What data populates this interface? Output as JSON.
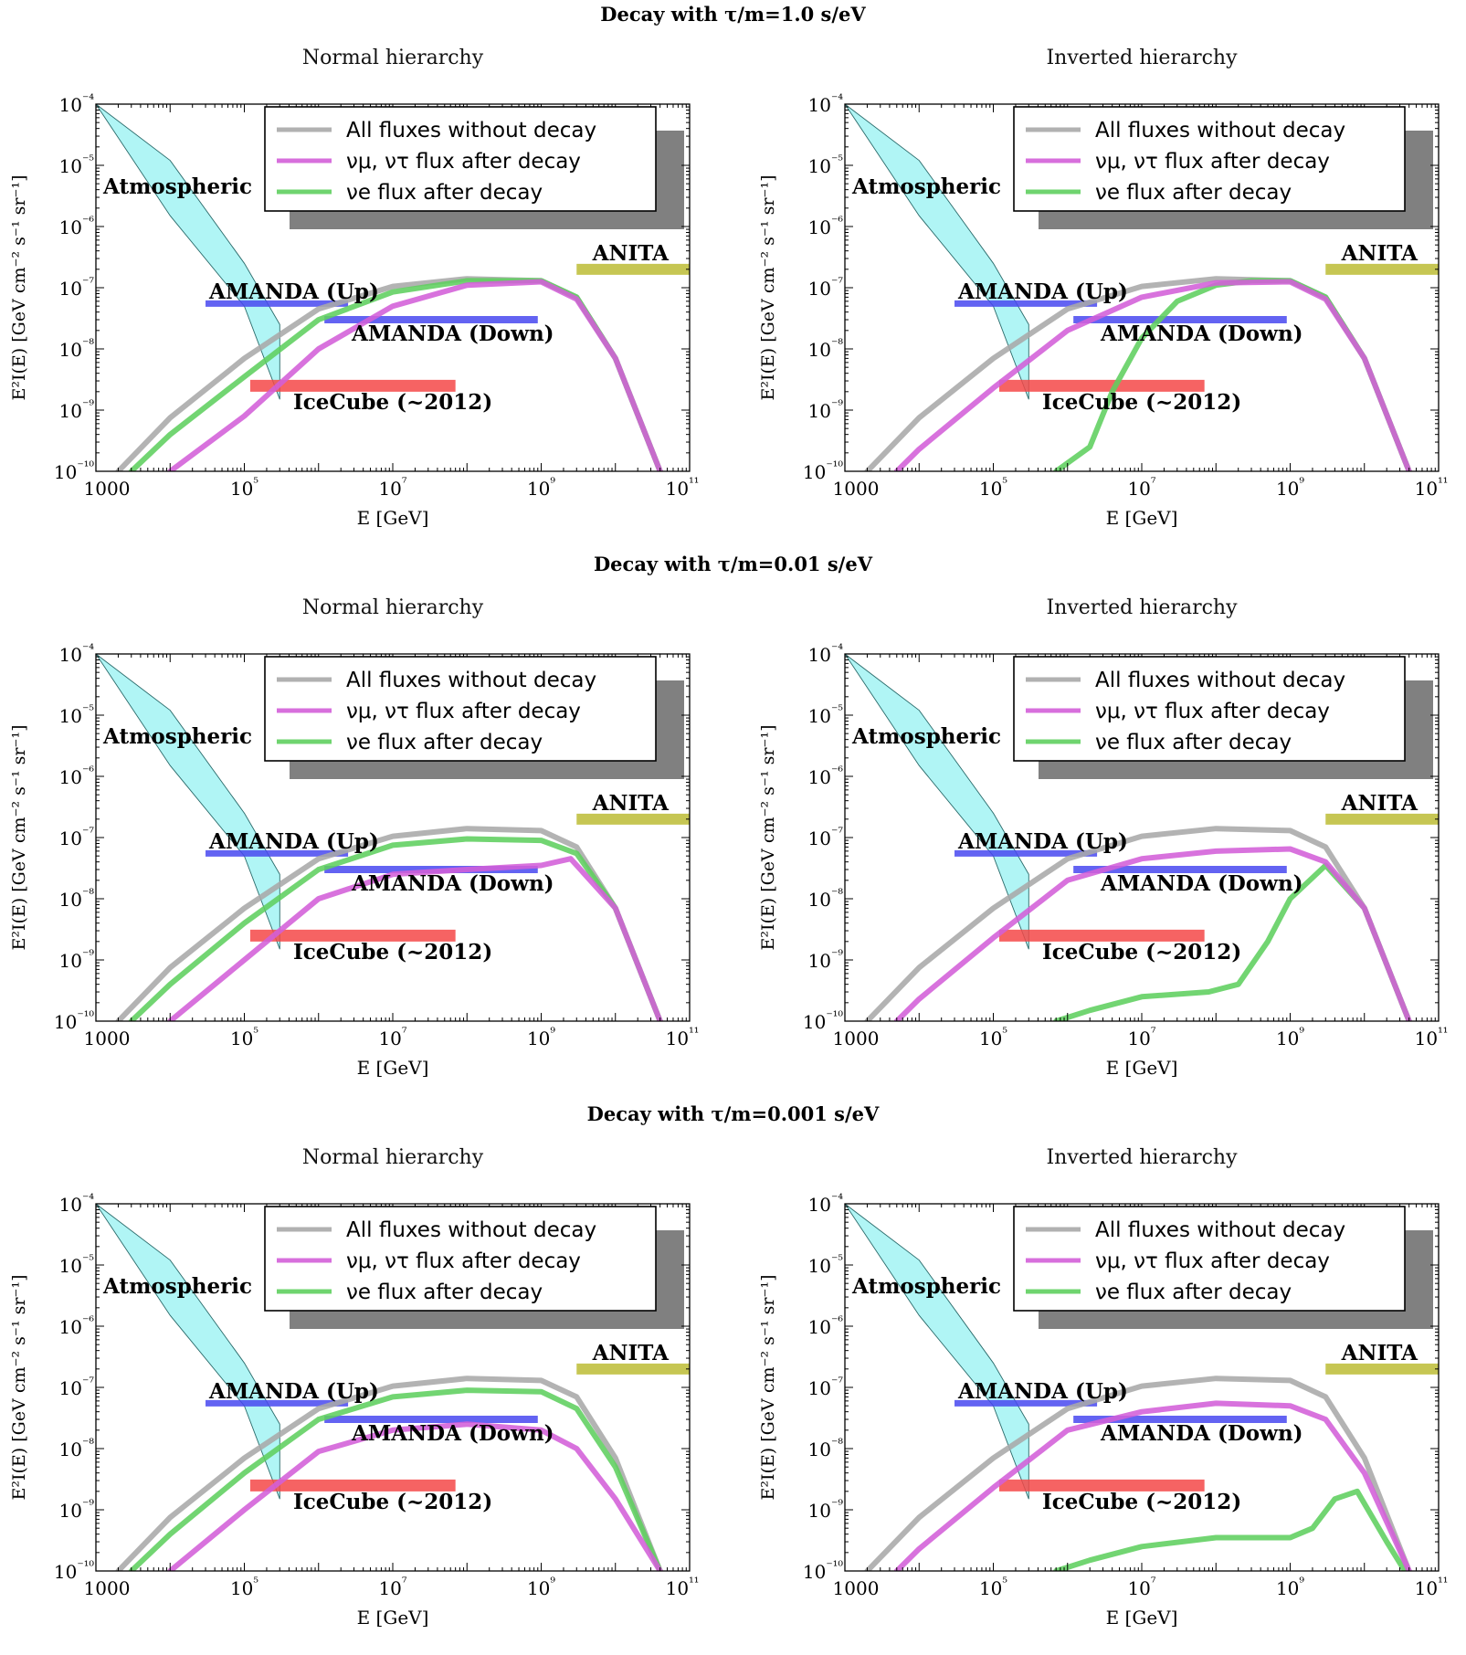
{
  "figure": {
    "rows": [
      {
        "heading": "Decay with τ/m=1.0 s/eV"
      },
      {
        "heading": "Decay with τ/m=0.01 s/eV"
      },
      {
        "heading": "Decay with τ/m=0.001 s/eV"
      }
    ],
    "column_titles": [
      "Normal hierarchy",
      "Inverted hierarchy"
    ],
    "xlabel": "E [GeV]",
    "ylabel": "E²I(E) [GeV cm⁻² s⁻¹ sr⁻¹]",
    "x_tick_labels": [
      "1000",
      "10⁵",
      "10⁷",
      "10⁹",
      "10¹¹"
    ],
    "y_tick_labels": [
      "10⁻⁴",
      "10⁻⁵",
      "10⁻⁶",
      "10⁻⁷",
      "10⁻⁸",
      "10⁻⁹",
      "10⁻¹⁰"
    ],
    "legend": [
      "All fluxes without decay",
      "νμ, ντ  flux after decay",
      "νe  flux after decay"
    ],
    "labels": {
      "atmospheric": "Atmospheric",
      "anita": "ANITA",
      "amanda_up": "AMANDA (Up)",
      "amanda_down": "AMANDA (Down)",
      "icecube": "IceCube (~2012)"
    },
    "colors": {
      "no_decay": "#a9a9a9",
      "numu_nutau": "#d35fd8",
      "nue": "#5fcf5f",
      "overlap": "#8a4aa0",
      "atmospheric": "#96f2f2",
      "anita": "#bcbc35",
      "amanda": "#4848f0",
      "icecube": "#f44848",
      "box": "#808080"
    }
  },
  "chart_data": [
    {
      "type": "line",
      "id": "r1-normal",
      "title": "Normal hierarchy",
      "xlabel": "E [GeV]",
      "ylabel": "E²I(E) [GeV cm⁻² s⁻¹ sr⁻¹]",
      "x_scale": "log",
      "y_scale": "log",
      "xlim": [
        1000,
        100000000000.0
      ],
      "ylim": [
        1e-10,
        0.0001
      ],
      "series": [
        {
          "name": "All fluxes without decay",
          "x": [
            2000.0,
            10000.0,
            100000.0,
            1000000.0,
            10000000.0,
            100000000.0,
            1000000000.0,
            3000000000.0,
            10000000000.0,
            40000000000.0
          ],
          "y": [
            1e-10,
            7.5e-10,
            7e-09,
            4.5e-08,
            1.05e-07,
            1.4e-07,
            1.3e-07,
            7e-08,
            7e-09,
            1e-10
          ]
        },
        {
          "name": "νe flux after decay",
          "x": [
            3000.0,
            10000.0,
            100000.0,
            1000000.0,
            10000000.0,
            100000000.0,
            1000000000.0,
            3000000000.0,
            10000000000.0,
            40000000000.0
          ],
          "y": [
            1e-10,
            4e-10,
            3.5e-09,
            3e-08,
            8.5e-08,
            1.3e-07,
            1.3e-07,
            7e-08,
            7e-09,
            1e-10
          ]
        },
        {
          "name": "νμ, ντ flux after decay",
          "x": [
            10000.0,
            100000.0,
            1000000.0,
            10000000.0,
            100000000.0,
            1000000000.0,
            3000000000.0,
            10000000000.0,
            40000000000.0
          ],
          "y": [
            1e-10,
            8e-10,
            1e-08,
            5e-08,
            1.1e-07,
            1.25e-07,
            6.5e-08,
            7e-09,
            1e-10
          ]
        }
      ],
      "atmospheric_band": {
        "x": [
          1000,
          10000.0,
          100000.0,
          300000.0
        ],
        "upper": [
          0.0001,
          1.2e-05,
          2.5e-07,
          2.5e-08
        ],
        "lower": [
          0.0001,
          1.5e-06,
          5e-08,
          1.5e-09
        ]
      },
      "limits": [
        {
          "name": "ANITA",
          "x": [
            3000000000.0,
            100000000000.0
          ],
          "y": 2e-07
        },
        {
          "name": "AMANDA (Up)",
          "x": [
            30000.0,
            2500000.0
          ],
          "y": 5.5e-08
        },
        {
          "name": "AMANDA (Down)",
          "x": [
            1200000.0,
            900000000.0
          ],
          "y": 3e-08
        },
        {
          "name": "IceCube (~2012)",
          "x": [
            120000.0,
            70000000.0
          ],
          "y": 2.5e-09
        }
      ]
    },
    {
      "type": "line",
      "id": "r1-inverted",
      "title": "Inverted hierarchy",
      "xlabel": "E [GeV]",
      "ylabel": "E²I(E) [GeV cm⁻² s⁻¹ sr⁻¹]",
      "x_scale": "log",
      "y_scale": "log",
      "xlim": [
        1000,
        100000000000.0
      ],
      "ylim": [
        1e-10,
        0.0001
      ],
      "series": [
        {
          "name": "All fluxes without decay",
          "x": [
            2000.0,
            10000.0,
            100000.0,
            1000000.0,
            10000000.0,
            100000000.0,
            1000000000.0,
            3000000000.0,
            10000000000.0,
            40000000000.0
          ],
          "y": [
            1e-10,
            7.5e-10,
            7e-09,
            4.5e-08,
            1.05e-07,
            1.4e-07,
            1.3e-07,
            7e-08,
            7e-09,
            1e-10
          ]
        },
        {
          "name": "νe flux after decay",
          "x": [
            700000.0,
            2000000.0,
            4000000.0,
            10000000.0,
            30000000.0,
            100000000.0,
            300000000.0,
            1000000000.0,
            3000000000.0,
            10000000000.0,
            40000000000.0
          ],
          "y": [
            1e-10,
            2.5e-10,
            2e-09,
            1.5e-08,
            6e-08,
            1.1e-07,
            1.3e-07,
            1.3e-07,
            7e-08,
            7e-09,
            1e-10
          ]
        },
        {
          "name": "νμ, ντ flux after decay",
          "x": [
            5000.0,
            10000.0,
            100000.0,
            1000000.0,
            10000000.0,
            100000000.0,
            1000000000.0,
            3000000000.0,
            10000000000.0,
            40000000000.0
          ],
          "y": [
            1e-10,
            2.3e-10,
            2.3e-09,
            2e-08,
            7e-08,
            1.2e-07,
            1.25e-07,
            6.5e-08,
            7e-09,
            1e-10
          ]
        }
      ],
      "atmospheric_band": {
        "x": [
          1000,
          10000.0,
          100000.0,
          300000.0
        ],
        "upper": [
          0.0001,
          1.2e-05,
          2.5e-07,
          2.5e-08
        ],
        "lower": [
          0.0001,
          1.5e-06,
          5e-08,
          1.5e-09
        ]
      },
      "limits": [
        {
          "name": "ANITA",
          "x": [
            3000000000.0,
            100000000000.0
          ],
          "y": 2e-07
        },
        {
          "name": "AMANDA (Up)",
          "x": [
            30000.0,
            2500000.0
          ],
          "y": 5.5e-08
        },
        {
          "name": "AMANDA (Down)",
          "x": [
            1200000.0,
            900000000.0
          ],
          "y": 3e-08
        },
        {
          "name": "IceCube (~2012)",
          "x": [
            120000.0,
            70000000.0
          ],
          "y": 2.5e-09
        }
      ]
    },
    {
      "type": "line",
      "id": "r2-normal",
      "title": "Normal hierarchy",
      "xlabel": "E [GeV]",
      "ylabel": "E²I(E) [GeV cm⁻² s⁻¹ sr⁻¹]",
      "x_scale": "log",
      "y_scale": "log",
      "xlim": [
        1000,
        100000000000.0
      ],
      "ylim": [
        1e-10,
        0.0001
      ],
      "series": [
        {
          "name": "All fluxes without decay",
          "x": [
            2000.0,
            10000.0,
            100000.0,
            1000000.0,
            10000000.0,
            100000000.0,
            1000000000.0,
            3000000000.0,
            10000000000.0,
            40000000000.0
          ],
          "y": [
            1e-10,
            7.5e-10,
            7e-09,
            4.5e-08,
            1.05e-07,
            1.4e-07,
            1.3e-07,
            7e-08,
            7e-09,
            1e-10
          ]
        },
        {
          "name": "νe flux after decay",
          "x": [
            3000.0,
            10000.0,
            100000.0,
            1000000.0,
            10000000.0,
            100000000.0,
            1000000000.0,
            3000000000.0,
            10000000000.0,
            40000000000.0
          ],
          "y": [
            1e-10,
            4e-10,
            4e-09,
            3e-08,
            7.5e-08,
            9.5e-08,
            9e-08,
            5.5e-08,
            7e-09,
            1e-10
          ]
        },
        {
          "name": "νμ, ντ flux after decay",
          "x": [
            10000.0,
            100000.0,
            1000000.0,
            10000000.0,
            100000000.0,
            1000000000.0,
            2500000000.0,
            10000000000.0,
            40000000000.0
          ],
          "y": [
            1e-10,
            1e-09,
            1e-08,
            2.5e-08,
            3e-08,
            3.5e-08,
            4.5e-08,
            7e-09,
            1e-10
          ]
        }
      ],
      "atmospheric_band": {
        "x": [
          1000,
          10000.0,
          100000.0,
          300000.0
        ],
        "upper": [
          0.0001,
          1.2e-05,
          2.5e-07,
          2.5e-08
        ],
        "lower": [
          0.0001,
          1.5e-06,
          5e-08,
          1.5e-09
        ]
      },
      "limits": [
        {
          "name": "ANITA",
          "x": [
            3000000000.0,
            100000000000.0
          ],
          "y": 2e-07
        },
        {
          "name": "AMANDA (Up)",
          "x": [
            30000.0,
            2500000.0
          ],
          "y": 5.5e-08
        },
        {
          "name": "AMANDA (Down)",
          "x": [
            1200000.0,
            900000000.0
          ],
          "y": 3e-08
        },
        {
          "name": "IceCube (~2012)",
          "x": [
            120000.0,
            70000000.0
          ],
          "y": 2.5e-09
        }
      ]
    },
    {
      "type": "line",
      "id": "r2-inverted",
      "title": "Inverted hierarchy",
      "xlabel": "E [GeV]",
      "ylabel": "E²I(E) [GeV cm⁻² s⁻¹ sr⁻¹]",
      "x_scale": "log",
      "y_scale": "log",
      "xlim": [
        1000,
        100000000000.0
      ],
      "ylim": [
        1e-10,
        0.0001
      ],
      "series": [
        {
          "name": "All fluxes without decay",
          "x": [
            2000.0,
            10000.0,
            100000.0,
            1000000.0,
            10000000.0,
            100000000.0,
            1000000000.0,
            3000000000.0,
            10000000000.0,
            40000000000.0
          ],
          "y": [
            1e-10,
            7.5e-10,
            7e-09,
            4.5e-08,
            1.05e-07,
            1.4e-07,
            1.3e-07,
            7e-08,
            7e-09,
            1e-10
          ]
        },
        {
          "name": "νe flux after decay",
          "x": [
            700000.0,
            2000000.0,
            10000000.0,
            80000000.0,
            200000000.0,
            500000000.0,
            1000000000.0,
            3000000000.0,
            10000000000.0,
            40000000000.0
          ],
          "y": [
            1e-10,
            1.5e-10,
            2.5e-10,
            3e-10,
            4e-10,
            2e-09,
            1e-08,
            3.5e-08,
            7e-09,
            1e-10
          ]
        },
        {
          "name": "νμ, ντ flux after decay",
          "x": [
            5000.0,
            10000.0,
            100000.0,
            1000000.0,
            10000000.0,
            100000000.0,
            1000000000.0,
            3000000000.0,
            10000000000.0,
            40000000000.0
          ],
          "y": [
            1e-10,
            2.3e-10,
            2.3e-09,
            2e-08,
            4.5e-08,
            6e-08,
            6.5e-08,
            4e-08,
            7e-09,
            1e-10
          ]
        }
      ],
      "atmospheric_band": {
        "x": [
          1000,
          10000.0,
          100000.0,
          300000.0
        ],
        "upper": [
          0.0001,
          1.2e-05,
          2.5e-07,
          2.5e-08
        ],
        "lower": [
          0.0001,
          1.5e-06,
          5e-08,
          1.5e-09
        ]
      },
      "limits": [
        {
          "name": "ANITA",
          "x": [
            3000000000.0,
            100000000000.0
          ],
          "y": 2e-07
        },
        {
          "name": "AMANDA (Up)",
          "x": [
            30000.0,
            2500000.0
          ],
          "y": 5.5e-08
        },
        {
          "name": "AMANDA (Down)",
          "x": [
            1200000.0,
            900000000.0
          ],
          "y": 3e-08
        },
        {
          "name": "IceCube (~2012)",
          "x": [
            120000.0,
            70000000.0
          ],
          "y": 2.5e-09
        }
      ]
    },
    {
      "type": "line",
      "id": "r3-normal",
      "title": "Normal hierarchy",
      "xlabel": "E [GeV]",
      "ylabel": "E²I(E) [GeV cm⁻² s⁻¹ sr⁻¹]",
      "x_scale": "log",
      "y_scale": "log",
      "xlim": [
        1000,
        100000000000.0
      ],
      "ylim": [
        1e-10,
        0.0001
      ],
      "series": [
        {
          "name": "All fluxes without decay",
          "x": [
            2000.0,
            10000.0,
            100000.0,
            1000000.0,
            10000000.0,
            100000000.0,
            1000000000.0,
            3000000000.0,
            10000000000.0,
            40000000000.0
          ],
          "y": [
            1e-10,
            7.5e-10,
            7e-09,
            4.5e-08,
            1.05e-07,
            1.4e-07,
            1.3e-07,
            7e-08,
            7e-09,
            1e-10
          ]
        },
        {
          "name": "νe flux after decay",
          "x": [
            3000.0,
            10000.0,
            100000.0,
            1000000.0,
            10000000.0,
            100000000.0,
            1000000000.0,
            3000000000.0,
            10000000000.0,
            40000000000.0
          ],
          "y": [
            1e-10,
            4e-10,
            4e-09,
            3e-08,
            7e-08,
            9e-08,
            8.5e-08,
            4.5e-08,
            5e-09,
            1e-10
          ]
        },
        {
          "name": "νμ, ντ flux after decay",
          "x": [
            10000.0,
            100000.0,
            1000000.0,
            10000000.0,
            100000000.0,
            1000000000.0,
            3000000000.0,
            10000000000.0,
            40000000000.0
          ],
          "y": [
            1e-10,
            1e-09,
            9e-09,
            2e-08,
            2.5e-08,
            2e-08,
            1e-08,
            1.5e-09,
            1e-10
          ]
        }
      ],
      "atmospheric_band": {
        "x": [
          1000,
          10000.0,
          100000.0,
          300000.0
        ],
        "upper": [
          0.0001,
          1.2e-05,
          2.5e-07,
          2.5e-08
        ],
        "lower": [
          0.0001,
          1.5e-06,
          5e-08,
          1.5e-09
        ]
      },
      "limits": [
        {
          "name": "ANITA",
          "x": [
            3000000000.0,
            100000000000.0
          ],
          "y": 2e-07
        },
        {
          "name": "AMANDA (Up)",
          "x": [
            30000.0,
            2500000.0
          ],
          "y": 5.5e-08
        },
        {
          "name": "AMANDA (Down)",
          "x": [
            1200000.0,
            900000000.0
          ],
          "y": 3e-08
        },
        {
          "name": "IceCube (~2012)",
          "x": [
            120000.0,
            70000000.0
          ],
          "y": 2.5e-09
        }
      ]
    },
    {
      "type": "line",
      "id": "r3-inverted",
      "title": "Inverted hierarchy",
      "xlabel": "E [GeV]",
      "ylabel": "E²I(E) [GeV cm⁻² s⁻¹ sr⁻¹]",
      "x_scale": "log",
      "y_scale": "log",
      "xlim": [
        1000,
        100000000000.0
      ],
      "ylim": [
        1e-10,
        0.0001
      ],
      "series": [
        {
          "name": "All fluxes without decay",
          "x": [
            2000.0,
            10000.0,
            100000.0,
            1000000.0,
            10000000.0,
            100000000.0,
            1000000000.0,
            3000000000.0,
            10000000000.0,
            40000000000.0
          ],
          "y": [
            1e-10,
            7.5e-10,
            7e-09,
            4.5e-08,
            1.05e-07,
            1.4e-07,
            1.3e-07,
            7e-08,
            7e-09,
            1e-10
          ]
        },
        {
          "name": "νe flux after decay",
          "x": [
            700000.0,
            2000000.0,
            10000000.0,
            100000000.0,
            500000000.0,
            1000000000.0,
            2000000000.0,
            4000000000.0,
            8000000000.0,
            20000000000.0,
            35000000000.0
          ],
          "y": [
            1e-10,
            1.5e-10,
            2.5e-10,
            3.5e-10,
            3.5e-10,
            3.5e-10,
            5e-10,
            1.5e-09,
            2e-09,
            3e-10,
            1e-10
          ]
        },
        {
          "name": "νμ, ντ flux after decay",
          "x": [
            5000.0,
            10000.0,
            100000.0,
            1000000.0,
            10000000.0,
            100000000.0,
            1000000000.0,
            3000000000.0,
            10000000000.0,
            40000000000.0
          ],
          "y": [
            1e-10,
            2.3e-10,
            2.3e-09,
            2e-08,
            4e-08,
            5.5e-08,
            5e-08,
            3e-08,
            4e-09,
            1e-10
          ]
        }
      ],
      "atmospheric_band": {
        "x": [
          1000,
          10000.0,
          100000.0,
          300000.0
        ],
        "upper": [
          0.0001,
          1.2e-05,
          2.5e-07,
          2.5e-08
        ],
        "lower": [
          0.0001,
          1.5e-06,
          5e-08,
          1.5e-09
        ]
      },
      "limits": [
        {
          "name": "ANITA",
          "x": [
            3000000000.0,
            100000000000.0
          ],
          "y": 2e-07
        },
        {
          "name": "AMANDA (Up)",
          "x": [
            30000.0,
            2500000.0
          ],
          "y": 5.5e-08
        },
        {
          "name": "AMANDA (Down)",
          "x": [
            1200000.0,
            900000000.0
          ],
          "y": 3e-08
        },
        {
          "name": "IceCube (~2012)",
          "x": [
            120000.0,
            70000000.0
          ],
          "y": 2.5e-09
        }
      ]
    }
  ]
}
